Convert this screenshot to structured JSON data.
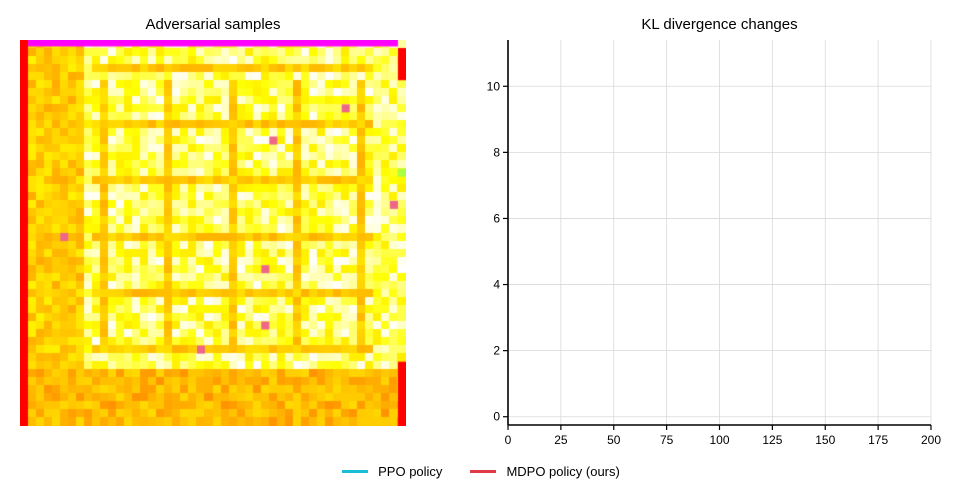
{
  "chart_data": [
    {
      "type": "heatmap",
      "title": "Adversarial samples",
      "grid_size": 48,
      "colormap": "autumn-like (red-orange-yellow-white)",
      "notes_colors": [
        "#ff0000",
        "#ffaa00",
        "#ffff00",
        "#ffffff",
        "#ff00ff",
        "#aaff44"
      ]
    },
    {
      "type": "line",
      "title": "KL divergence changes",
      "xlim": [
        0,
        200
      ],
      "ylim": [
        -0.25,
        11.4
      ],
      "xticks": [
        0,
        25,
        50,
        75,
        100,
        125,
        150,
        175,
        200
      ],
      "yticks": [
        0,
        2,
        4,
        6,
        8,
        10
      ],
      "grid": true,
      "series": [
        {
          "name": "PPO policy",
          "color": "#1bbcd6",
          "x": [],
          "y": []
        },
        {
          "name": "MDPO policy (ours)",
          "color": "#e03a47",
          "x": [],
          "y": []
        }
      ],
      "legend_placement": "bottom-center"
    }
  ]
}
